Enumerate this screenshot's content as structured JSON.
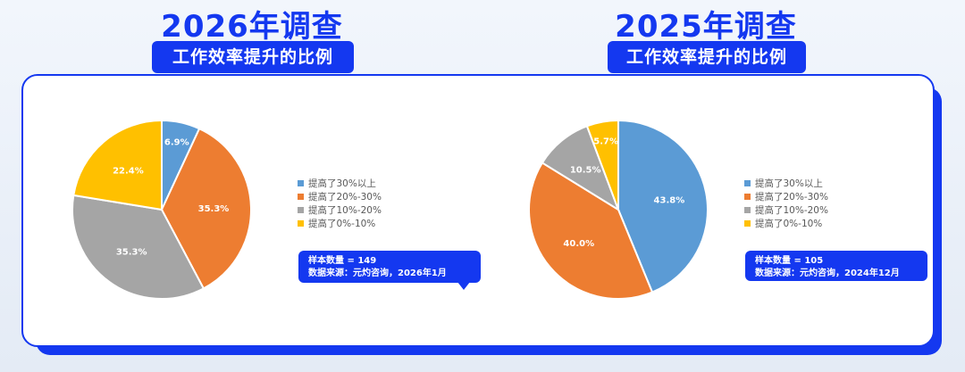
{
  "charts": [
    {
      "heading": "2026年调查",
      "subtitle": "工作效率提升的比例",
      "sample_line": "样本数量 = 149",
      "source_line": "数据来源：元灼咨询，2026年1月"
    },
    {
      "heading": "2025年调查",
      "subtitle": "工作效率提升的比例",
      "sample_line": "样本数量 = 105",
      "source_line": "数据来源：元灼咨询，2024年12月"
    }
  ],
  "chart_data": [
    {
      "type": "pie",
      "title": "2026年调查",
      "subtitle": "工作效率提升的比例",
      "categories": [
        "提高了30%以上",
        "提高了20%-30%",
        "提高了10%-20%",
        "提高了0%-10%"
      ],
      "values": [
        6.9,
        35.3,
        35.3,
        22.4
      ],
      "labels": [
        "6.9%",
        "35.3%",
        "35.3%",
        "22.4%"
      ],
      "colors": [
        "#5b9bd5",
        "#ed7d31",
        "#a5a5a5",
        "#ffc000"
      ],
      "legend_position": "right"
    },
    {
      "type": "pie",
      "title": "2025年调查",
      "subtitle": "工作效率提升的比例",
      "categories": [
        "提高了30%以上",
        "提高了20%-30%",
        "提高了10%-20%",
        "提高了0%-10%"
      ],
      "values": [
        43.8,
        40.0,
        10.5,
        5.7
      ],
      "labels": [
        "43.8%",
        "40.0%",
        "10.5%",
        "5.7%"
      ],
      "colors": [
        "#5b9bd5",
        "#ed7d31",
        "#a5a5a5",
        "#ffc000"
      ],
      "legend_position": "right"
    }
  ]
}
